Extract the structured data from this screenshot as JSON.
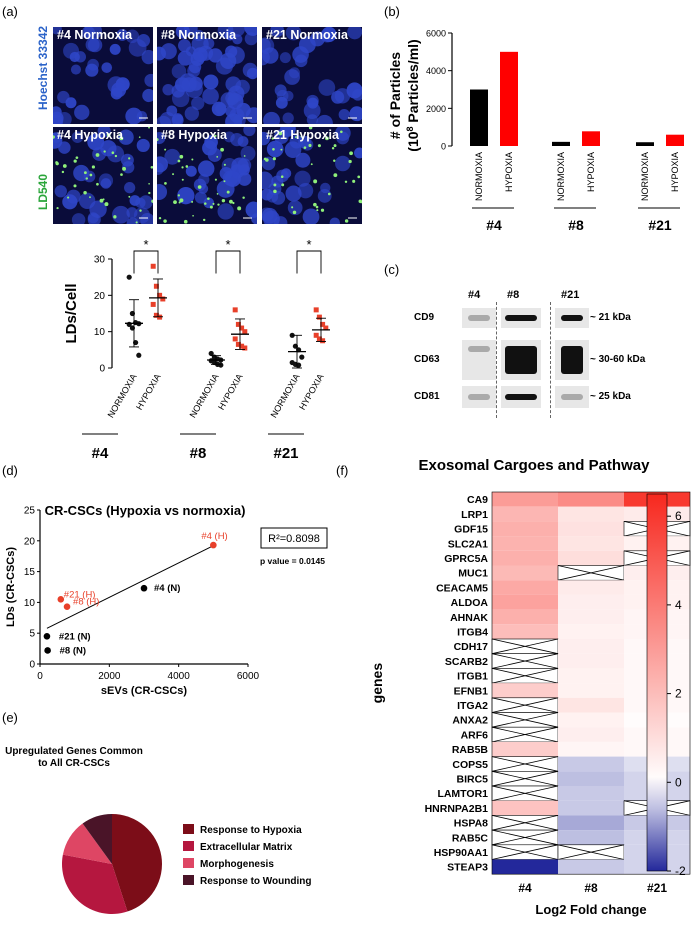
{
  "panel_labels": {
    "a": "(a)",
    "b": "(b)",
    "c": "(c)",
    "d": "(d)",
    "e": "(e)",
    "f": "(f)"
  },
  "micro": {
    "row_labels": [
      "Hoechst 33342",
      "LD540"
    ],
    "row_label_colors": [
      "#2b63c9",
      "#2aa53a"
    ],
    "tiles": [
      [
        "#4 Normoxia",
        "#8 Normoxia",
        "#21 Normoxia"
      ],
      [
        "#4 Hypoxia",
        "#8 Hypoxia",
        "#21 Hypoxia"
      ]
    ]
  },
  "chart_data": [
    {
      "type": "scatter",
      "ylabel": "LDs/Cell",
      "ylim": [
        0,
        30
      ],
      "yticks": [
        0,
        10,
        20,
        30
      ],
      "x_tick_labels": [
        "NORMOXIA",
        "HYPOXIA",
        "NORMOXIA",
        "HYPOXIA",
        "NORMOXIA",
        "HYPOXIA"
      ],
      "groups": [
        "#4",
        "#8",
        "#21"
      ],
      "significance": [
        "*",
        "*",
        "*"
      ],
      "colors": {
        "normoxia": "#111111",
        "hypoxia": "#e8402a"
      },
      "series": [
        {
          "group": "#4",
          "condition": "NORMOXIA",
          "mean": 12.3,
          "sd": 6.5,
          "values": [
            25,
            15,
            12.5,
            12.2,
            12,
            11,
            7,
            3.5
          ]
        },
        {
          "group": "#4",
          "condition": "HYPOXIA",
          "mean": 19.3,
          "sd": 5.2,
          "values": [
            28,
            22.5,
            20,
            19,
            17.5,
            14.5,
            14
          ]
        },
        {
          "group": "#8",
          "condition": "NORMOXIA",
          "mean": 2.2,
          "sd": 1.2,
          "values": [
            4,
            3,
            2.5,
            2.2,
            2,
            1.5,
            1,
            0.8
          ]
        },
        {
          "group": "#8",
          "condition": "HYPOXIA",
          "mean": 9.3,
          "sd": 4.2,
          "values": [
            16,
            12,
            11,
            10,
            8,
            6.5,
            6,
            5.5
          ]
        },
        {
          "group": "#21",
          "condition": "NORMOXIA",
          "mean": 4.5,
          "sd": 4.5,
          "values": [
            9,
            6,
            5,
            3,
            1.5,
            1,
            0.8
          ]
        },
        {
          "group": "#21",
          "condition": "HYPOXIA",
          "mean": 10.5,
          "sd": 3.2,
          "values": [
            16,
            14,
            12,
            11,
            9,
            8,
            7.5
          ]
        }
      ]
    },
    {
      "type": "bar",
      "ylabel": "# of Particles",
      "ylabel2": "(10",
      "ylabel2_sup": "8",
      "ylabel2_end": " Particles/ml)",
      "ylim": [
        0,
        6000
      ],
      "yticks": [
        0,
        2000,
        4000,
        6000
      ],
      "x_tick_labels": [
        "NORMOXIA",
        "HYPOXIA",
        "NORMOXIA",
        "HYPOXIA",
        "NORMOXIA",
        "HYPOXIA"
      ],
      "groups": [
        "#4",
        "#8",
        "#21"
      ],
      "series": [
        {
          "name": "NORMOXIA",
          "color": "#000000",
          "values": [
            3000,
            220,
            200
          ]
        },
        {
          "name": "HYPOXIA",
          "color": "#ff0000",
          "values": [
            5000,
            780,
            600
          ]
        }
      ]
    },
    {
      "type": "scatter",
      "title": "CR-CSCs (Hypoxia vs normoxia)",
      "xlabel": "sEVs (CR-CSCs)",
      "ylabel": "LDs (CR-CSCs)",
      "xlim": [
        0,
        6000
      ],
      "ylim": [
        0,
        25
      ],
      "xticks": [
        0,
        2000,
        4000,
        6000
      ],
      "yticks": [
        0,
        5,
        10,
        15,
        20,
        25
      ],
      "r2": "R²=0.8098",
      "p_value": "p value = 0.0145",
      "fit_line": {
        "x": [
          200,
          5000
        ],
        "y": [
          5.8,
          19.2
        ]
      },
      "points": [
        {
          "label": "#4 (H)",
          "x": 5000,
          "y": 19.3,
          "color": "#e8402a"
        },
        {
          "label": "#4 (N)",
          "x": 3000,
          "y": 12.3,
          "color": "#000000"
        },
        {
          "label": "#21 (H)",
          "x": 600,
          "y": 10.5,
          "color": "#e8402a"
        },
        {
          "label": "#8 (H)",
          "x": 780,
          "y": 9.3,
          "color": "#e8402a"
        },
        {
          "label": "#21 (N)",
          "x": 200,
          "y": 4.5,
          "color": "#000000"
        },
        {
          "label": "#8 (N)",
          "x": 220,
          "y": 2.2,
          "color": "#000000"
        }
      ]
    },
    {
      "type": "pie",
      "title_lines": [
        "Upregulated Genes Common",
        "to All CR-CSCs"
      ],
      "slices": [
        {
          "label": "Response to Hypoxia",
          "value": 45,
          "color": "#7c0d18"
        },
        {
          "label": "Extracellular Matrix",
          "value": 33,
          "color": "#b5173f"
        },
        {
          "label": "Morphogenesis",
          "value": 12,
          "color": "#de4664"
        },
        {
          "label": "Response to Wounding",
          "value": 10,
          "color": "#4a1428"
        }
      ]
    },
    {
      "type": "heatmap",
      "title": "Exosomal Cargoes and Pathway",
      "xlabel": "Log2 Fold change",
      "ylabel": "genes",
      "columns": [
        "#4",
        "#8",
        "#21"
      ],
      "colorbar": {
        "min": -2,
        "max": 6.5,
        "ticks": [
          6,
          4,
          2,
          0,
          -2
        ]
      },
      "rows": [
        "CA9",
        "LRP1",
        "GDF15",
        "SLC2A1",
        "GPRC5A",
        "MUC1",
        "CEACAM5",
        "ALDOA",
        "AHNAK",
        "ITGB4",
        "CDH17",
        "SCARB2",
        "ITGB1",
        "EFNB1",
        "ITGA2",
        "ANXA2",
        "ARF6",
        "RAB5B",
        "COPS5",
        "BIRC5",
        "LAMTOR1",
        "HNRNPA2B1",
        "HSPA8",
        "RAB5C",
        "HSP90AA1",
        "STEAP3"
      ],
      "values": [
        [
          3.0,
          3.5,
          6.0
        ],
        [
          2.2,
          0.8,
          0.6
        ],
        [
          2.4,
          0.9,
          null
        ],
        [
          2.3,
          0.8,
          0.4
        ],
        [
          2.4,
          1.0,
          null
        ],
        [
          2.1,
          null,
          0.5
        ],
        [
          2.6,
          0.6,
          0.4
        ],
        [
          2.8,
          0.5,
          0.4
        ],
        [
          2.4,
          0.5,
          0.3
        ],
        [
          2.0,
          0.4,
          0.3
        ],
        [
          null,
          0.5,
          0.2
        ],
        [
          null,
          0.5,
          0.2
        ],
        [
          null,
          0.4,
          0.2
        ],
        [
          1.5,
          0.4,
          0.2
        ],
        [
          null,
          0.8,
          0.2
        ],
        [
          null,
          0.4,
          0.1
        ],
        [
          null,
          0.5,
          0.2
        ],
        [
          1.5,
          0.3,
          0.2
        ],
        [
          null,
          -0.5,
          -0.3
        ],
        [
          null,
          -0.6,
          -0.4
        ],
        [
          null,
          -0.5,
          -0.4
        ],
        [
          1.8,
          -0.5,
          null
        ],
        [
          null,
          -0.8,
          -0.5
        ],
        [
          null,
          -0.6,
          -0.4
        ],
        [
          null,
          null,
          -0.4
        ],
        [
          -2.0,
          -0.5,
          -0.4
        ]
      ]
    }
  ],
  "blot": {
    "lanes": [
      "#4",
      "#8",
      "#21"
    ],
    "rows": [
      {
        "protein": "CD9",
        "size": "~ 21 kDa"
      },
      {
        "protein": "CD63",
        "size": "~ 30-60 kDa"
      },
      {
        "protein": "CD81",
        "size": "~ 25 kDa"
      }
    ]
  }
}
